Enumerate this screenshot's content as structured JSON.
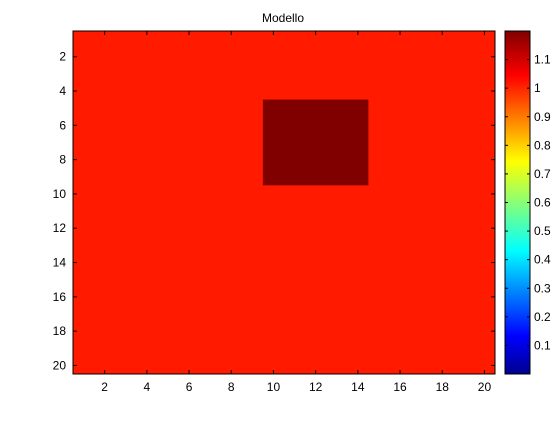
{
  "chart_data": {
    "type": "heatmap",
    "title": "Modello",
    "xlabel": "",
    "ylabel": "",
    "x_range": [
      0.5,
      20.5
    ],
    "y_range": [
      0.5,
      20.5
    ],
    "y_reversed": true,
    "x_ticks": [
      "2",
      "4",
      "6",
      "8",
      "10",
      "12",
      "14",
      "16",
      "18",
      "20"
    ],
    "y_ticks": [
      "2",
      "4",
      "6",
      "8",
      "10",
      "12",
      "14",
      "16",
      "18",
      "20"
    ],
    "background_value": 1.0,
    "background_color": "#ff1a00",
    "blocks": [
      {
        "x_range": [
          9.5,
          14.5
        ],
        "y_range": [
          4.5,
          9.5
        ],
        "value": 1.2,
        "color": "#800000"
      }
    ],
    "colormap": "jet",
    "clim": [
      0,
      1.2
    ],
    "colorbar": {
      "position": "right",
      "ticks": [
        "0.1",
        "0.2",
        "0.3",
        "0.4",
        "0.5",
        "0.6",
        "0.7",
        "0.8",
        "0.9",
        "1",
        "1.1"
      ]
    }
  }
}
